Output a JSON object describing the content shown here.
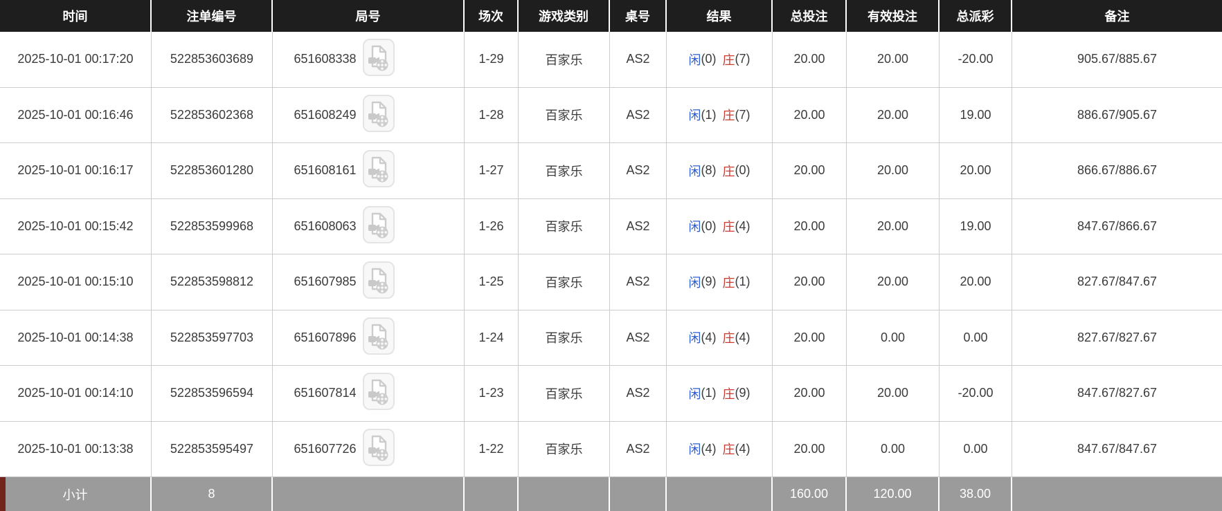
{
  "table": {
    "columns": [
      {
        "key": "time",
        "label": "时间"
      },
      {
        "key": "bet_id",
        "label": "注单编号"
      },
      {
        "key": "round",
        "label": "局号"
      },
      {
        "key": "session",
        "label": "场次"
      },
      {
        "key": "game_type",
        "label": "游戏类别"
      },
      {
        "key": "table_no",
        "label": "桌号"
      },
      {
        "key": "result",
        "label": "结果"
      },
      {
        "key": "total_bet",
        "label": "总投注"
      },
      {
        "key": "valid_bet",
        "label": "有效投注"
      },
      {
        "key": "payout",
        "label": "总派彩"
      },
      {
        "key": "remark",
        "label": "备注"
      }
    ],
    "result_labels": {
      "player": "闲",
      "banker": "庄"
    },
    "icons": {
      "round_video": "video-file-icon"
    },
    "rows": [
      {
        "time": "2025-10-01 00:17:20",
        "bet_id": "522853603689",
        "round": "651608338",
        "session": "1-29",
        "game_type": "百家乐",
        "table_no": "AS2",
        "result_player": "(0)",
        "result_banker": "(7)",
        "total_bet": "20.00",
        "valid_bet": "20.00",
        "payout": "-20.00",
        "remark": "905.67/885.67"
      },
      {
        "time": "2025-10-01 00:16:46",
        "bet_id": "522853602368",
        "round": "651608249",
        "session": "1-28",
        "game_type": "百家乐",
        "table_no": "AS2",
        "result_player": "(1)",
        "result_banker": "(7)",
        "total_bet": "20.00",
        "valid_bet": "20.00",
        "payout": "19.00",
        "remark": "886.67/905.67"
      },
      {
        "time": "2025-10-01 00:16:17",
        "bet_id": "522853601280",
        "round": "651608161",
        "session": "1-27",
        "game_type": "百家乐",
        "table_no": "AS2",
        "result_player": "(8)",
        "result_banker": "(0)",
        "total_bet": "20.00",
        "valid_bet": "20.00",
        "payout": "20.00",
        "remark": "866.67/886.67"
      },
      {
        "time": "2025-10-01 00:15:42",
        "bet_id": "522853599968",
        "round": "651608063",
        "session": "1-26",
        "game_type": "百家乐",
        "table_no": "AS2",
        "result_player": "(0)",
        "result_banker": "(4)",
        "total_bet": "20.00",
        "valid_bet": "20.00",
        "payout": "19.00",
        "remark": "847.67/866.67"
      },
      {
        "time": "2025-10-01 00:15:10",
        "bet_id": "522853598812",
        "round": "651607985",
        "session": "1-25",
        "game_type": "百家乐",
        "table_no": "AS2",
        "result_player": "(9)",
        "result_banker": "(1)",
        "total_bet": "20.00",
        "valid_bet": "20.00",
        "payout": "20.00",
        "remark": "827.67/847.67"
      },
      {
        "time": "2025-10-01 00:14:38",
        "bet_id": "522853597703",
        "round": "651607896",
        "session": "1-24",
        "game_type": "百家乐",
        "table_no": "AS2",
        "result_player": "(4)",
        "result_banker": "(4)",
        "total_bet": "20.00",
        "valid_bet": "0.00",
        "payout": "0.00",
        "remark": "827.67/827.67"
      },
      {
        "time": "2025-10-01 00:14:10",
        "bet_id": "522853596594",
        "round": "651607814",
        "session": "1-23",
        "game_type": "百家乐",
        "table_no": "AS2",
        "result_player": "(1)",
        "result_banker": "(9)",
        "total_bet": "20.00",
        "valid_bet": "20.00",
        "payout": "-20.00",
        "remark": "847.67/827.67"
      },
      {
        "time": "2025-10-01 00:13:38",
        "bet_id": "522853595497",
        "round": "651607726",
        "session": "1-22",
        "game_type": "百家乐",
        "table_no": "AS2",
        "result_player": "(4)",
        "result_banker": "(4)",
        "total_bet": "20.00",
        "valid_bet": "0.00",
        "payout": "0.00",
        "remark": "847.67/847.67"
      }
    ],
    "footer": {
      "label": "小计",
      "count": "8",
      "total_bet": "160.00",
      "valid_bet": "120.00",
      "payout": "38.00"
    }
  },
  "colors": {
    "header_bg": "#1e1e1e",
    "footer_bg": "#9b9b9b",
    "footer_strip": "#72231b",
    "text_dark": "#3b3b3b",
    "player_blue": "#2b5dd7",
    "banker_red": "#c93a31",
    "bet_blue": "#2d72e2",
    "negative_red": "#e60000"
  }
}
